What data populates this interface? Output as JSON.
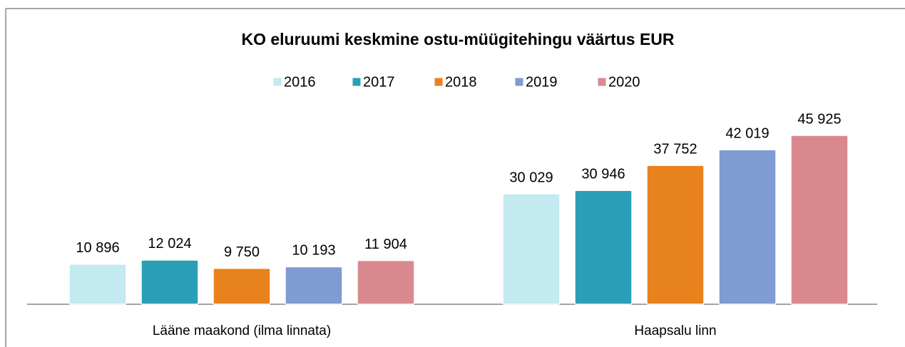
{
  "chart_data": {
    "type": "bar",
    "title": "KO eluruumi keskmine ostu-müügitehingu väärtus EUR",
    "categories": [
      "Lääne maakond (ilma linnata)",
      "Haapsalu linn"
    ],
    "series": [
      {
        "name": "2016",
        "color": "#c3e9f1",
        "values": [
          10896,
          30029
        ],
        "value_labels": [
          "10 896",
          "30 029"
        ]
      },
      {
        "name": "2017",
        "color": "#2a9fb7",
        "values": [
          12024,
          30946
        ],
        "value_labels": [
          "12 024",
          "30 946"
        ]
      },
      {
        "name": "2018",
        "color": "#e8821c",
        "values": [
          9750,
          37752
        ],
        "value_labels": [
          "9 750",
          "37 752"
        ]
      },
      {
        "name": "2019",
        "color": "#7f9bd2",
        "values": [
          10193,
          42019
        ],
        "value_labels": [
          "10 193",
          "42 019"
        ]
      },
      {
        "name": "2020",
        "color": "#d9898e",
        "values": [
          11904,
          45925
        ],
        "value_labels": [
          "11 904",
          "45 925"
        ]
      }
    ],
    "legend": "top"
  }
}
